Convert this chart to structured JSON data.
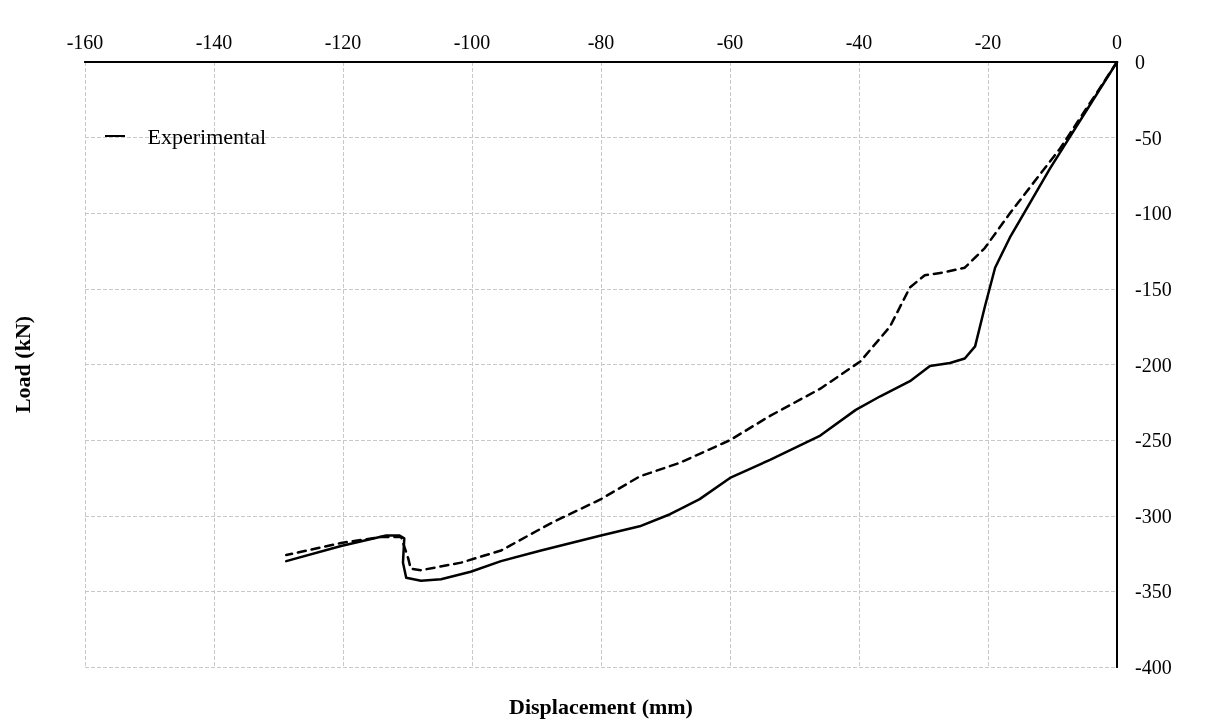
{
  "chart_data": {
    "type": "line",
    "xlabel": "Displacement (mm)",
    "ylabel": "Load (kN)",
    "xlim": [
      -160,
      0
    ],
    "xticks": [
      -160,
      -140,
      -120,
      -100,
      -80,
      -60,
      -40,
      -20,
      0
    ],
    "ylim": [
      -400,
      0
    ],
    "yticks": [
      -400,
      -350,
      -300,
      -250,
      -200,
      -150,
      -100,
      -50,
      0
    ],
    "grid": true,
    "legend": "top left",
    "marker": "none",
    "series": [
      {
        "color": "#000000",
        "line_style": "solid",
        "x": [
          0,
          -10.4,
          -16.6,
          -18.9,
          -20.5,
          -22,
          -23.6,
          -25.9,
          -29,
          -32.1,
          -36.7,
          -40.5,
          -46,
          -53.8,
          -60,
          -64.7,
          -69.3,
          -74,
          -80,
          -89.3,
          -95.5,
          -100.2,
          -104.8,
          -107.9,
          -110.2,
          -110.7,
          -110.5,
          -111.3,
          -113.3,
          -120.3,
          -128.8
        ],
        "values": [
          0,
          -70.5,
          -116,
          -136,
          -162,
          -188,
          -196,
          -199,
          -201,
          -211,
          -221,
          -230,
          -247,
          -263,
          -275,
          -289,
          -299,
          -307,
          -313,
          -323,
          -330,
          -337,
          -342,
          -343,
          -341,
          -331,
          -315,
          -313,
          -313,
          -320,
          -330
        ]
      },
      {
        "name": "Experimental",
        "color": "#000000",
        "line_style": "dashed",
        "x": [
          0,
          -8.8,
          -16.6,
          -20.5,
          -23.6,
          -26.7,
          -29.8,
          -32.1,
          -35.2,
          -39.8,
          -46,
          -53.8,
          -60,
          -67.8,
          -74,
          -80,
          -87.8,
          -95.5,
          -101.7,
          -107.9,
          -109.5,
          -109.9,
          -111,
          -114.1,
          -120.3,
          -128.8
        ],
        "values": [
          0,
          -57,
          -100,
          -123,
          -136,
          -139,
          -141,
          -149,
          -175,
          -198,
          -216,
          -234,
          -250,
          -265,
          -274,
          -289,
          -305,
          -323,
          -331,
          -336,
          -335,
          -328,
          -314,
          -314,
          -318,
          -326
        ]
      }
    ]
  }
}
